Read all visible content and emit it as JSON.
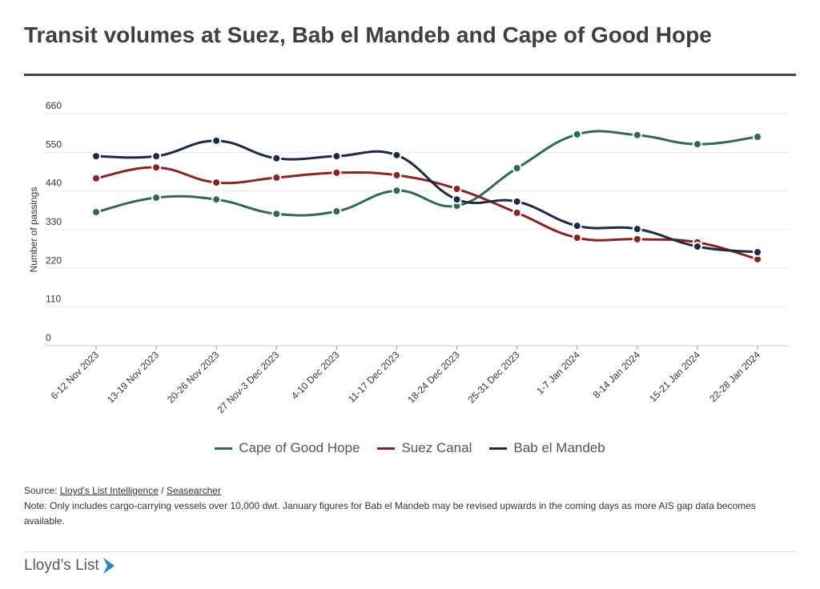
{
  "title": "Transit volumes at Suez, Bab el Mandeb and Cape of Good Hope",
  "chart_data": {
    "type": "line",
    "title": "Transit volumes at Suez, Bab el Mandeb and Cape of Good Hope",
    "ylabel": "Number of passings",
    "xlabel": "",
    "ylim": [
      0,
      660
    ],
    "yticks": [
      0,
      110,
      220,
      330,
      440,
      550,
      660
    ],
    "grid": true,
    "legend": "bottom",
    "categories": [
      "6-12 Nov 2023",
      "13-19 Nov 2023",
      "20-26 Nov 2023",
      "27 Nov-3 Dec 2023",
      "4-10 Dec 2023",
      "11-17 Dec 2023",
      "18-24 Dec 2023",
      "25-31 Dec 2023",
      "1-7 Jan 2024",
      "8-14 Jan 2024",
      "15-21 Jan 2024",
      "22-28 Jan 2024"
    ],
    "series": [
      {
        "name": "Cape of Good Hope",
        "color": "#2e6b52",
        "values": [
          380,
          421,
          416,
          375,
          382,
          441,
          398,
          505,
          601,
          599,
          573,
          594
        ]
      },
      {
        "name": "Suez Canal",
        "color": "#8e2220",
        "values": [
          476,
          507,
          464,
          478,
          492,
          485,
          446,
          378,
          307,
          303,
          294,
          246
        ]
      },
      {
        "name": "Bab el Mandeb",
        "color": "#1b2a47",
        "values": [
          539,
          539,
          583,
          533,
          539,
          542,
          416,
          410,
          341,
          332,
          282,
          266
        ]
      }
    ]
  },
  "notes": {
    "source_prefix": "Source: ",
    "source_link1": "Lloyd’s List Intelligence",
    "source_sep": " / ",
    "source_link2": "Seasearcher",
    "note": "Note: Only includes cargo-carrying vessels over 10,000 dwt. January figures for Bab el Mandeb may be revised upwards in the coming days as more AIS gap data becomes available."
  },
  "logo": "Lloyd’s List"
}
